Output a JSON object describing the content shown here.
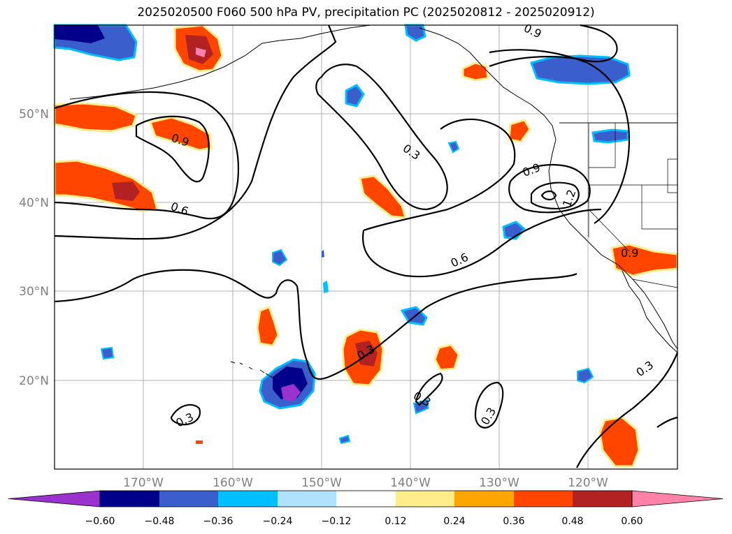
{
  "title": "2025020500 F060 500 hPa PV, precipitation PC (2025020812 - 2025020912)",
  "map": {
    "lat_labels": [
      "50°N",
      "40°N",
      "30°N",
      "20°N"
    ],
    "lon_labels": [
      "170°W",
      "160°W",
      "150°W",
      "140°W",
      "130°W",
      "120°W"
    ],
    "contour_labels": [
      {
        "text": "0.9"
      },
      {
        "text": "0.9"
      },
      {
        "text": "0.6"
      },
      {
        "text": "0.3"
      },
      {
        "text": "0.9"
      },
      {
        "text": "1.2"
      },
      {
        "text": "0.6"
      },
      {
        "text": "0.3"
      },
      {
        "text": "0.3"
      },
      {
        "text": "0.3"
      },
      {
        "text": "0.3"
      },
      {
        "text": "0.3"
      },
      {
        "text": "0.9"
      }
    ]
  },
  "colorbar": {
    "ticks": [
      "−0.60",
      "−0.48",
      "−0.36",
      "−0.24",
      "−0.12",
      "0.12",
      "0.24",
      "0.36",
      "0.48",
      "0.60"
    ],
    "colors": [
      "#9a32cd",
      "#00008b",
      "#3a5fcd",
      "#00bfff",
      "#b0e2ff",
      "#ffffff",
      "#ffec8b",
      "#ffa500",
      "#ff4500",
      "#b22222",
      "#ff82ab"
    ]
  }
}
